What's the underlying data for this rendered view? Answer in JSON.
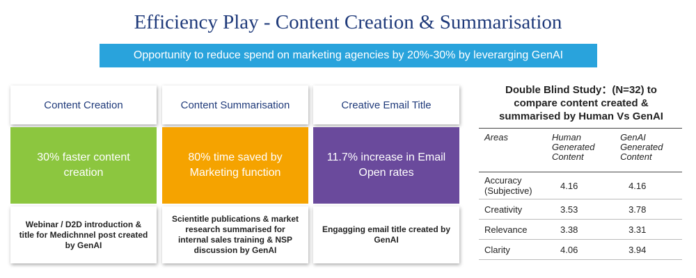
{
  "header": {
    "title": "Efficiency Play - Content Creation & Summarisation",
    "subtitle": "Opportunity to reduce spend on marketing agencies by 20%-30% by leverarging GenAI"
  },
  "cards": [
    {
      "heading": "Content Creation",
      "highlight": "30% faster content creation",
      "description": "Webinar / D2D introduction & title for Medichnnel post created by GenAI"
    },
    {
      "heading": "Content Summarisation",
      "highlight": "80% time saved by Marketing function",
      "description": "Scientitle publications & market research summarised for internal sales training & NSP discussion by GenAI"
    },
    {
      "heading": "Creative Email Title",
      "highlight": "11.7% increase in Email Open rates",
      "description": "Engagging email title created by GenAI"
    }
  ],
  "study": {
    "title": "Double Blind Study：(N=32) to compare content created & summarised by Human Vs GenAI",
    "table": {
      "columns": [
        "Areas",
        "Human Generated Content",
        "GenAI Generated Content"
      ],
      "rows": [
        [
          "Accuracy (Subjective)",
          4.16,
          4.16
        ],
        [
          "Creativity",
          3.53,
          3.78
        ],
        [
          "Relevance",
          3.38,
          3.31
        ],
        [
          "Clarity",
          4.06,
          3.94
        ]
      ]
    }
  }
}
